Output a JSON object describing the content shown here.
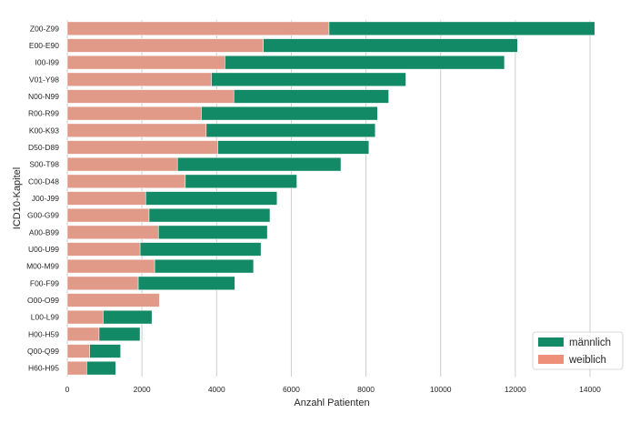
{
  "chart_data": {
    "type": "bar",
    "orientation": "horizontal",
    "stacked": true,
    "title": "",
    "xlabel": "Anzahl Patienten",
    "ylabel": "ICD10-Kapitel",
    "xlim": [
      0,
      14600
    ],
    "xticks": [
      0,
      2000,
      4000,
      6000,
      8000,
      10000,
      12000,
      14000
    ],
    "xtick_labels": [
      "0",
      "2000",
      "4000",
      "6000",
      "8000",
      "10000",
      "12000",
      "14000"
    ],
    "grid": "vertical",
    "legend_position": "bottom-right",
    "categories": [
      "Z00-Z99",
      "E00-E90",
      "I00-I99",
      "V01-Y98",
      "N00-N99",
      "R00-R99",
      "K00-K93",
      "D50-D89",
      "S00-T98",
      "C00-D48",
      "J00-J99",
      "G00-G99",
      "A00-B99",
      "U00-U99",
      "M00-M99",
      "F00-F99",
      "O00-O99",
      "L00-L99",
      "H00-H59",
      "Q00-Q99",
      "H60-H95"
    ],
    "series": [
      {
        "name": "männlich",
        "color": "#138a66",
        "note": "values are totals (bar end); male segment drawn behind female",
        "values": [
          14130,
          12060,
          11710,
          9070,
          8610,
          8310,
          8250,
          8080,
          7330,
          6150,
          5620,
          5430,
          5360,
          5190,
          4990,
          4490,
          0,
          2270,
          1950,
          1430,
          1300
        ]
      },
      {
        "name": "weiblich",
        "color": "#e29a88",
        "values": [
          7010,
          5250,
          4220,
          3860,
          4460,
          3590,
          3720,
          4030,
          2950,
          3160,
          2100,
          2190,
          2440,
          1950,
          2340,
          1900,
          2470,
          960,
          850,
          600,
          520
        ]
      }
    ]
  },
  "legend": {
    "items": [
      {
        "label": "männlich",
        "color": "#138a66"
      },
      {
        "label": "weiblich",
        "color": "#ee8f7a"
      }
    ]
  }
}
